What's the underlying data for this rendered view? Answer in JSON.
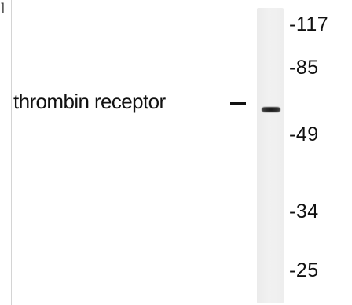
{
  "corner_mark": "]",
  "band": {
    "label": "thrombin receptor"
  },
  "markers": [
    "-117",
    "-85",
    "-49",
    "-34",
    "-25"
  ]
}
